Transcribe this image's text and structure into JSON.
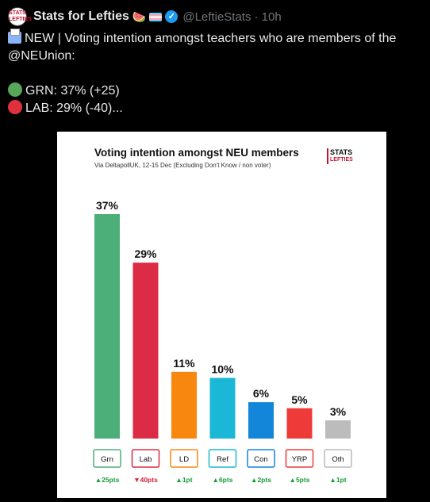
{
  "tweet": {
    "avatar_text": "STATS LEFTIES",
    "author": "Stats for Lefties",
    "emoji": "🍉",
    "handle": "@LeftieStats",
    "time": "· 10h",
    "line1": "NEW | Voting intention amongst teachers who are members of the",
    "line2": "@NEUnion:",
    "grn_line": "GRN: 37% (+25)",
    "lab_line": "LAB: 29% (-40)...",
    "colors": {
      "grn_dot": "#57a65a",
      "lab_dot": "#e0303d"
    }
  },
  "card": {
    "title": "Voting intention amongst NEU members",
    "subtitle": "Via DeltapollUK, 12-15 Dec (Excluding Don't Know / non voter)",
    "logo_top": "STATS",
    "logo_bottom": "LEFTIES"
  },
  "chart_data": {
    "type": "bar",
    "title": "Voting intention amongst NEU members",
    "subtitle": "Via DeltapollUK, 12-15 Dec (Excluding Don't Know / non voter)",
    "categories": [
      "Grn",
      "Lab",
      "LD",
      "Ref",
      "Con",
      "YRP",
      "Oth"
    ],
    "values": [
      37,
      29,
      11,
      10,
      6,
      5,
      3
    ],
    "value_labels": [
      "37%",
      "29%",
      "11%",
      "10%",
      "6%",
      "5%",
      "3%"
    ],
    "changes": [
      "▲25pts",
      "▼40pts",
      "▲1pt",
      "▲6pts",
      "▲2pts",
      "▲5pts",
      "▲1pt"
    ],
    "change_direction": [
      "up",
      "down",
      "up",
      "up",
      "up",
      "up",
      "up"
    ],
    "colors": [
      "#4caf7a",
      "#dc2b45",
      "#f7870f",
      "#1ab8d6",
      "#1486d9",
      "#ef3a3a",
      "#bcbcbc"
    ],
    "up_color": "#1a9c3a",
    "down_color": "#d8203c",
    "ylim": [
      0,
      37
    ]
  }
}
